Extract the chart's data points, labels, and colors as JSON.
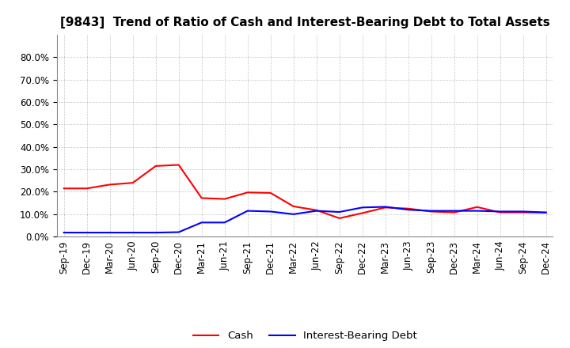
{
  "title": "[9843]  Trend of Ratio of Cash and Interest-Bearing Debt to Total Assets",
  "x_labels": [
    "Sep-19",
    "Dec-19",
    "Mar-20",
    "Jun-20",
    "Sep-20",
    "Dec-20",
    "Mar-21",
    "Jun-21",
    "Sep-21",
    "Dec-21",
    "Mar-22",
    "Jun-22",
    "Sep-22",
    "Dec-22",
    "Mar-23",
    "Jun-23",
    "Sep-23",
    "Dec-23",
    "Mar-24",
    "Jun-24",
    "Sep-24",
    "Dec-24"
  ],
  "cash": [
    0.215,
    0.215,
    0.232,
    0.24,
    0.315,
    0.32,
    0.172,
    0.168,
    0.197,
    0.195,
    0.135,
    0.118,
    0.082,
    0.105,
    0.13,
    0.125,
    0.112,
    0.108,
    0.132,
    0.108,
    0.108,
    0.107
  ],
  "interest_bearing_debt": [
    0.018,
    0.018,
    0.018,
    0.018,
    0.018,
    0.02,
    0.063,
    0.063,
    0.115,
    0.112,
    0.1,
    0.115,
    0.11,
    0.13,
    0.133,
    0.12,
    0.115,
    0.115,
    0.115,
    0.112,
    0.112,
    0.108
  ],
  "cash_color": "#ff0000",
  "debt_color": "#0000ff",
  "background_color": "#ffffff",
  "plot_background_color": "#ffffff",
  "ylim": [
    0.0,
    0.9
  ],
  "yticks": [
    0.0,
    0.1,
    0.2,
    0.3,
    0.4,
    0.5,
    0.6,
    0.7,
    0.8
  ],
  "grid_color": "#aaaaaa",
  "legend_cash": "Cash",
  "legend_debt": "Interest-Bearing Debt",
  "title_fontsize": 11,
  "axis_fontsize": 8.5,
  "legend_fontsize": 9.5
}
